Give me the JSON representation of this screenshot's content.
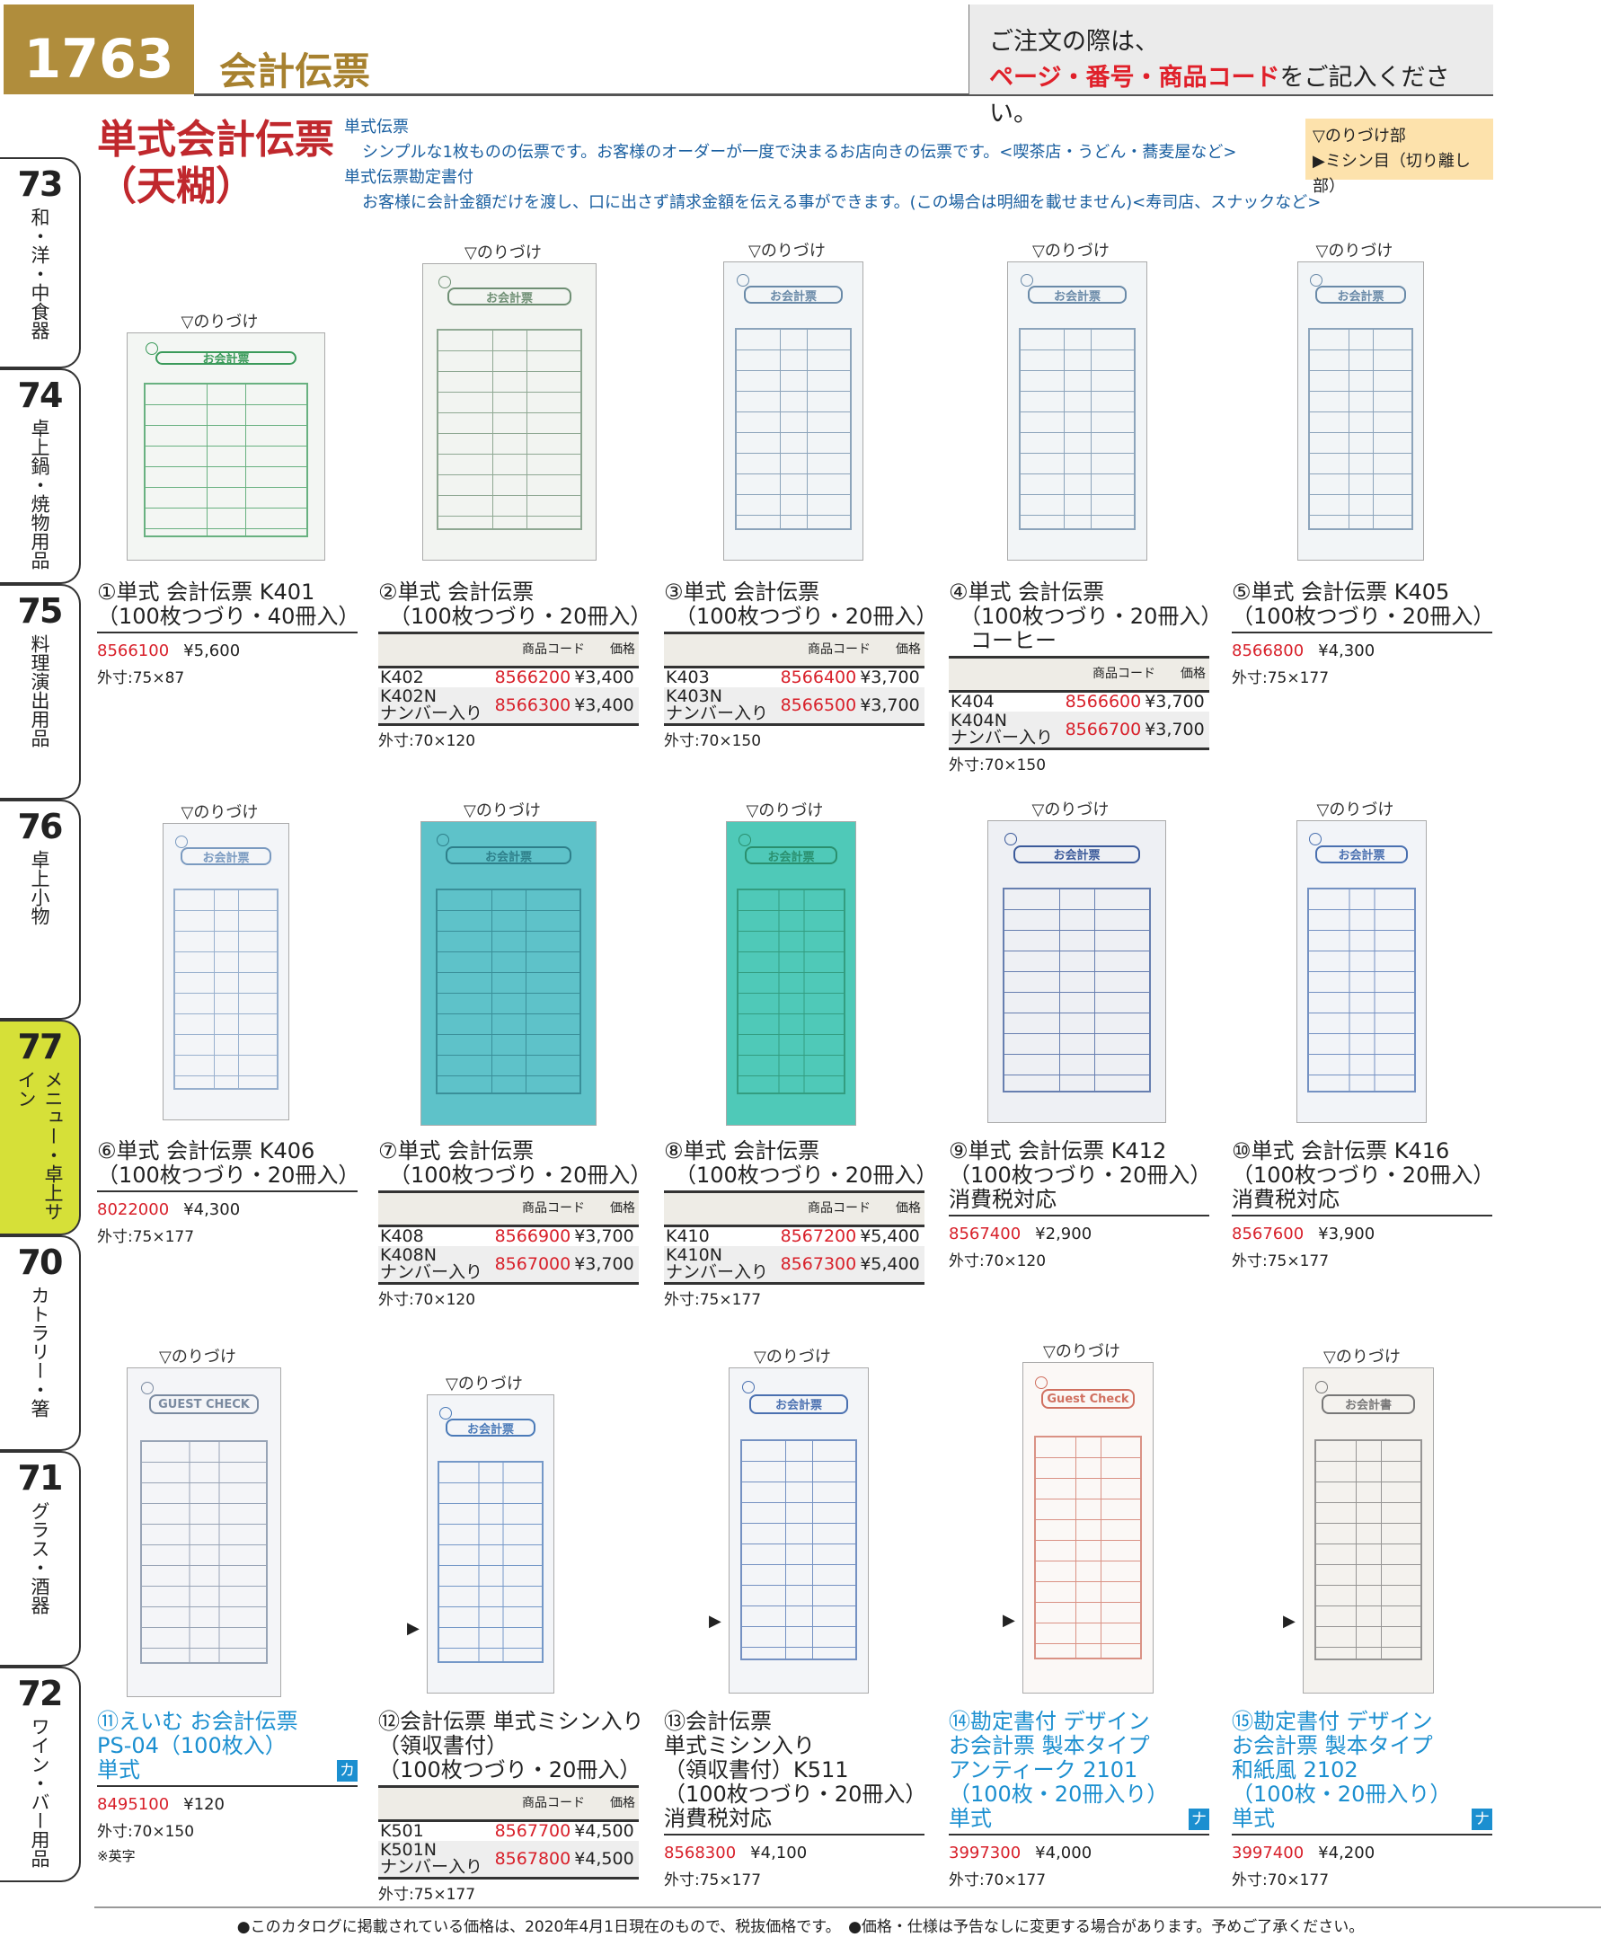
{
  "header": {
    "page_number": "1763",
    "section_title": "会計伝票",
    "notice_line1": "ご注文の際は、",
    "notice_highlight": "ページ・番号・商品コード",
    "notice_rest": "をご記入ください。"
  },
  "main_title": [
    "単式会計伝票",
    "（天糊）"
  ],
  "descriptions": [
    {
      "heading": "単式伝票",
      "text": "シンプルな1枚ものの伝票です。お客様のオーダーが一度で決まるお店向きの伝票です。<喫茶店・うどん・蕎麦屋など>"
    },
    {
      "heading": "単式伝票勘定書付",
      "text": "お客様に会計金額だけを渡し、口に出さず請求金額を伝える事ができます。(この場合は明細を載せません)<寿司店、スナックなど>"
    }
  ],
  "legend": {
    "glue": "▽のりづけ部",
    "perforation": "▶ミシン目（切り離し部）"
  },
  "side_tabs": [
    {
      "num": "73",
      "label": "和・洋・中食器"
    },
    {
      "num": "74",
      "label": "卓上鍋・焼物用品"
    },
    {
      "num": "75",
      "label": "料理演出用品"
    },
    {
      "num": "76",
      "label": "卓上小物"
    },
    {
      "num": "77",
      "label": "メニュー・卓上サイン",
      "active": true
    },
    {
      "num": "70",
      "label": "カトラリー・箸"
    },
    {
      "num": "71",
      "label": "グラス・酒器"
    },
    {
      "num": "72",
      "label": "ワイン・バー用品"
    }
  ],
  "glue_label": "▽のりづけ",
  "perforation_marker": "▶",
  "table_headers": {
    "code": "商品コード",
    "price": "価格"
  },
  "colors": {
    "accent_gold": "#b08d3c",
    "code_red": "#d8202a",
    "title_red": "#c0282d",
    "text_blue": "#1b8fd0",
    "active_tab": "#d6e038"
  },
  "products": [
    {
      "title": [
        "①単式 会計伝票 K401",
        "（100枚つづり・40冊入）"
      ],
      "code": "8566100",
      "price": "¥5,600",
      "size": "外寸:75×87",
      "ticket": {
        "label": "お会計票",
        "color": "#3a9a5a",
        "bg": "#f3f6f3"
      }
    },
    {
      "title": [
        "②単式 会計伝票",
        "　（100枚つづり・20冊入）"
      ],
      "variants": [
        {
          "model": "K402",
          "code": "8566200",
          "price": "¥3,400"
        },
        {
          "model": "K402N\nナンバー入り",
          "code": "8566300",
          "price": "¥3,400"
        }
      ],
      "size": "外寸:70×120",
      "ticket": {
        "label": "お会計票",
        "color": "#6f8f74",
        "bg": "#f2f4f1"
      }
    },
    {
      "title": [
        "③単式 会計伝票",
        "　（100枚つづり・20冊入）"
      ],
      "variants": [
        {
          "model": "K403",
          "code": "8566400",
          "price": "¥3,700"
        },
        {
          "model": "K403N\nナンバー入り",
          "code": "8566500",
          "price": "¥3,700"
        }
      ],
      "size": "外寸:70×150",
      "ticket": {
        "label": "お会計票",
        "color": "#6a8aa8",
        "bg": "#f2f5f7"
      }
    },
    {
      "title": [
        "④単式 会計伝票",
        "　（100枚つづり・20冊入）",
        "　コーヒー"
      ],
      "variants": [
        {
          "model": "K404",
          "code": "8566600",
          "price": "¥3,700"
        },
        {
          "model": "K404N\nナンバー入り",
          "code": "8566700",
          "price": "¥3,700"
        }
      ],
      "size": "外寸:70×150",
      "ticket": {
        "label": "お会計票",
        "color": "#6a8aa8",
        "bg": "#f2f5f7"
      }
    },
    {
      "title": [
        "⑤単式 会計伝票 K405",
        "（100枚つづり・20冊入）"
      ],
      "code": "8566800",
      "price": "¥4,300",
      "size": "外寸:75×177",
      "ticket": {
        "label": "お会計票",
        "color": "#6a8aa8",
        "bg": "#f2f5f7"
      }
    },
    {
      "title": [
        "⑥単式 会計伝票 K406",
        "（100枚つづり・20冊入）"
      ],
      "code": "8022000",
      "price": "¥4,300",
      "size": "外寸:75×177",
      "ticket": {
        "label": "お会計票",
        "color": "#7a9ac0",
        "bg": "#f3f5f8"
      }
    },
    {
      "title": [
        "⑦単式 会計伝票",
        "　（100枚つづり・20冊入）"
      ],
      "variants": [
        {
          "model": "K408",
          "code": "8566900",
          "price": "¥3,700"
        },
        {
          "model": "K408N\nナンバー入り",
          "code": "8567000",
          "price": "¥3,700"
        }
      ],
      "size": "外寸:70×120",
      "ticket": {
        "label": "お会計票",
        "color": "#2e7f8a",
        "bg": "#5ec2c9"
      }
    },
    {
      "title": [
        "⑧単式 会計伝票",
        "　（100枚つづり・20冊入）"
      ],
      "variants": [
        {
          "model": "K410",
          "code": "8567200",
          "price": "¥5,400"
        },
        {
          "model": "K410N\nナンバー入り",
          "code": "8567300",
          "price": "¥5,400"
        }
      ],
      "size": "外寸:75×177",
      "ticket": {
        "label": "お会計票",
        "color": "#2a8f6e",
        "bg": "#4fc9b8"
      }
    },
    {
      "title": [
        "⑨単式 会計伝票 K412",
        "（100枚つづり・20冊入）",
        "消費税対応"
      ],
      "code": "8567400",
      "price": "¥2,900",
      "size": "外寸:70×120",
      "ticket": {
        "label": "お会計票",
        "color": "#3b5a9a",
        "bg": "#eef0f4"
      }
    },
    {
      "title": [
        "⑩単式 会計伝票 K416",
        "（100枚つづり・20冊入）",
        "消費税対応"
      ],
      "code": "8567600",
      "price": "¥3,900",
      "size": "外寸:75×177",
      "ticket": {
        "label": "お会計票",
        "color": "#4a70b0",
        "bg": "#f2f4f8"
      }
    },
    {
      "title": [
        "⑪えいむ お会計伝票",
        "PS-04（100枚入）",
        "単式"
      ],
      "code": "8495100",
      "price": "¥120",
      "size": "外寸:70×150",
      "note": "※英字",
      "badge": "カ",
      "blue": true,
      "ticket": {
        "label": "GUEST CHECK",
        "color": "#7a8aa0",
        "bg": "#f4f5f8"
      }
    },
    {
      "title": [
        "⑫会計伝票 単式ミシン入り",
        "（領収書付）",
        "（100枚つづり・20冊入）"
      ],
      "variants": [
        {
          "model": "K501",
          "code": "8567700",
          "price": "¥4,500"
        },
        {
          "model": "K501N\nナンバー入り",
          "code": "8567800",
          "price": "¥4,500"
        }
      ],
      "size": "外寸:75×177",
      "marker": true,
      "ticket": {
        "label": "お会計票",
        "color": "#4a7ab8",
        "bg": "#f3f5f8"
      }
    },
    {
      "title": [
        "⑬会計伝票",
        "単式ミシン入り",
        "（領収書付）K511",
        "（100枚つづり・20冊入）",
        "消費税対応"
      ],
      "code": "8568300",
      "price": "¥4,100",
      "size": "外寸:75×177",
      "marker": true,
      "ticket": {
        "label": "お会計票",
        "color": "#4a70b0",
        "bg": "#f3f5f8"
      }
    },
    {
      "title": [
        "⑭勘定書付 デザイン",
        "お会計票 製本タイプ",
        "アンティーク 2101",
        "（100枚・20冊入り）",
        "単式"
      ],
      "code": "3997300",
      "price": "¥4,000",
      "size": "外寸:70×177",
      "badge": "ナ",
      "blue": true,
      "marker": true,
      "ticket": {
        "label": "Guest Check",
        "color": "#d07060",
        "bg": "#fbf8f6"
      }
    },
    {
      "title": [
        "⑮勘定書付 デザイン",
        "お会計票 製本タイプ",
        "和紙風 2102",
        "（100枚・20冊入り）",
        "単式"
      ],
      "code": "3997400",
      "price": "¥4,200",
      "size": "外寸:70×177",
      "badge": "ナ",
      "blue": true,
      "marker": true,
      "ticket": {
        "label": "お会計書",
        "color": "#777",
        "bg": "#f4f2ee"
      }
    }
  ],
  "footer": "●このカタログに掲載されている価格は、2020年4月1日現在のもので、税抜価格です。　●価格・仕様は予告なしに変更する場合があります。予めご了承ください。"
}
